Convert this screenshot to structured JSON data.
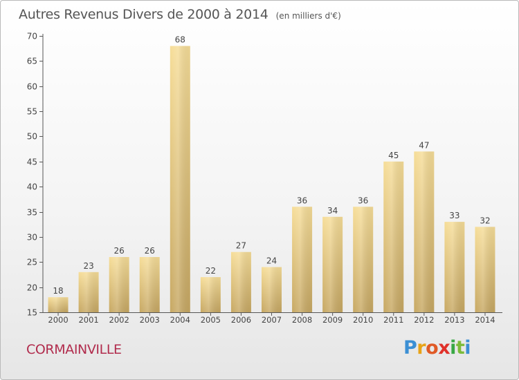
{
  "chart_data": {
    "type": "bar",
    "title": "Autres Revenus Divers de 2000 à 2014",
    "subtitle": "(en milliers d'€)",
    "xlabel": "",
    "ylabel": "",
    "categories": [
      "2000",
      "2001",
      "2002",
      "2003",
      "2004",
      "2005",
      "2006",
      "2007",
      "2008",
      "2009",
      "2010",
      "2011",
      "2012",
      "2013",
      "2014"
    ],
    "values": [
      18,
      23,
      26,
      26,
      68,
      22,
      27,
      24,
      36,
      34,
      36,
      45,
      47,
      33,
      32
    ],
    "ylim": [
      15,
      70
    ],
    "yticks": [
      15,
      20,
      25,
      30,
      35,
      40,
      45,
      50,
      55,
      60,
      65,
      70
    ],
    "grid": false,
    "bar_color": "#e2c57a"
  },
  "footer": {
    "commune": "CORMAINVILLE",
    "brand_letters": [
      "P",
      "r",
      "o",
      "x",
      "i",
      "t",
      "i"
    ]
  }
}
